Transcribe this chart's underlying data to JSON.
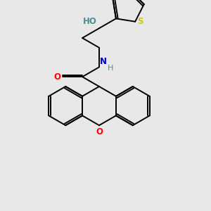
{
  "background_color": "#e8e8e8",
  "atom_colors": {
    "C": "#000000",
    "N": "#0000cc",
    "O": "#ff0000",
    "S": "#cccc00",
    "HO": "#4a9090",
    "H": "#4a9090"
  },
  "lw": 1.4,
  "lw2": 1.4,
  "figsize": [
    3.0,
    3.0
  ],
  "dpi": 100
}
